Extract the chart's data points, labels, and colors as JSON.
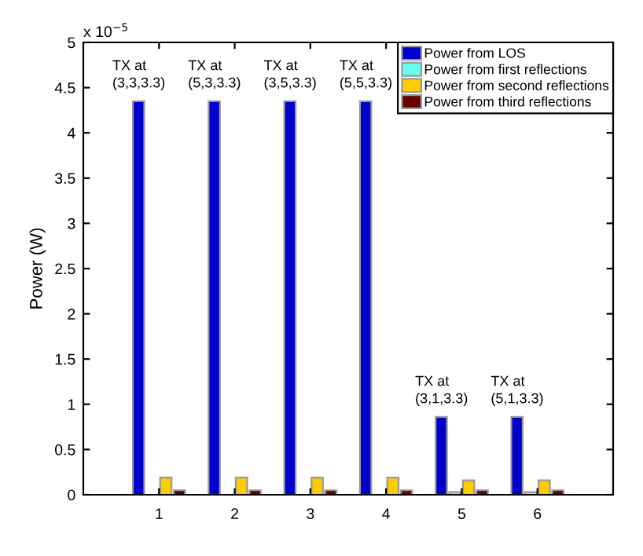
{
  "chart_data": {
    "type": "bar",
    "ylabel": "Power (W)",
    "categories": [
      "1",
      "2",
      "3",
      "4",
      "5",
      "6"
    ],
    "series": [
      {
        "name": "Power from LOS",
        "color": "#0000cc",
        "values": [
          4.35,
          4.35,
          4.35,
          4.35,
          0.86,
          0.86
        ]
      },
      {
        "name": "Power from first reflections",
        "color": "#66ffee",
        "values": [
          null,
          null,
          null,
          null,
          0.03,
          0.03
        ]
      },
      {
        "name": "Power from second reflections",
        "color": "#ffcc00",
        "values": [
          0.19,
          0.19,
          0.19,
          0.19,
          0.16,
          0.16
        ]
      },
      {
        "name": "Power from third reflections",
        "color": "#660000",
        "values": [
          0.05,
          0.05,
          0.05,
          0.05,
          0.05,
          0.05
        ]
      }
    ],
    "ylim": [
      0,
      5
    ],
    "yticks": [
      0,
      0.5,
      1,
      1.5,
      2,
      2.5,
      3,
      3.5,
      4,
      4.5,
      5
    ],
    "annotations": [
      "x 10$^{−5}$",
      "TX at\n(3,3,3.3)",
      "TX at\n(5,3,3.3)",
      "TX at\n(3,5,3.3)",
      "TX at\n(5,5,3.3)",
      "TX at\n(3,1,3.3)",
      "TX at\n(5,1,3.3)"
    ],
    "legend": "top right",
    "grid": false
  }
}
